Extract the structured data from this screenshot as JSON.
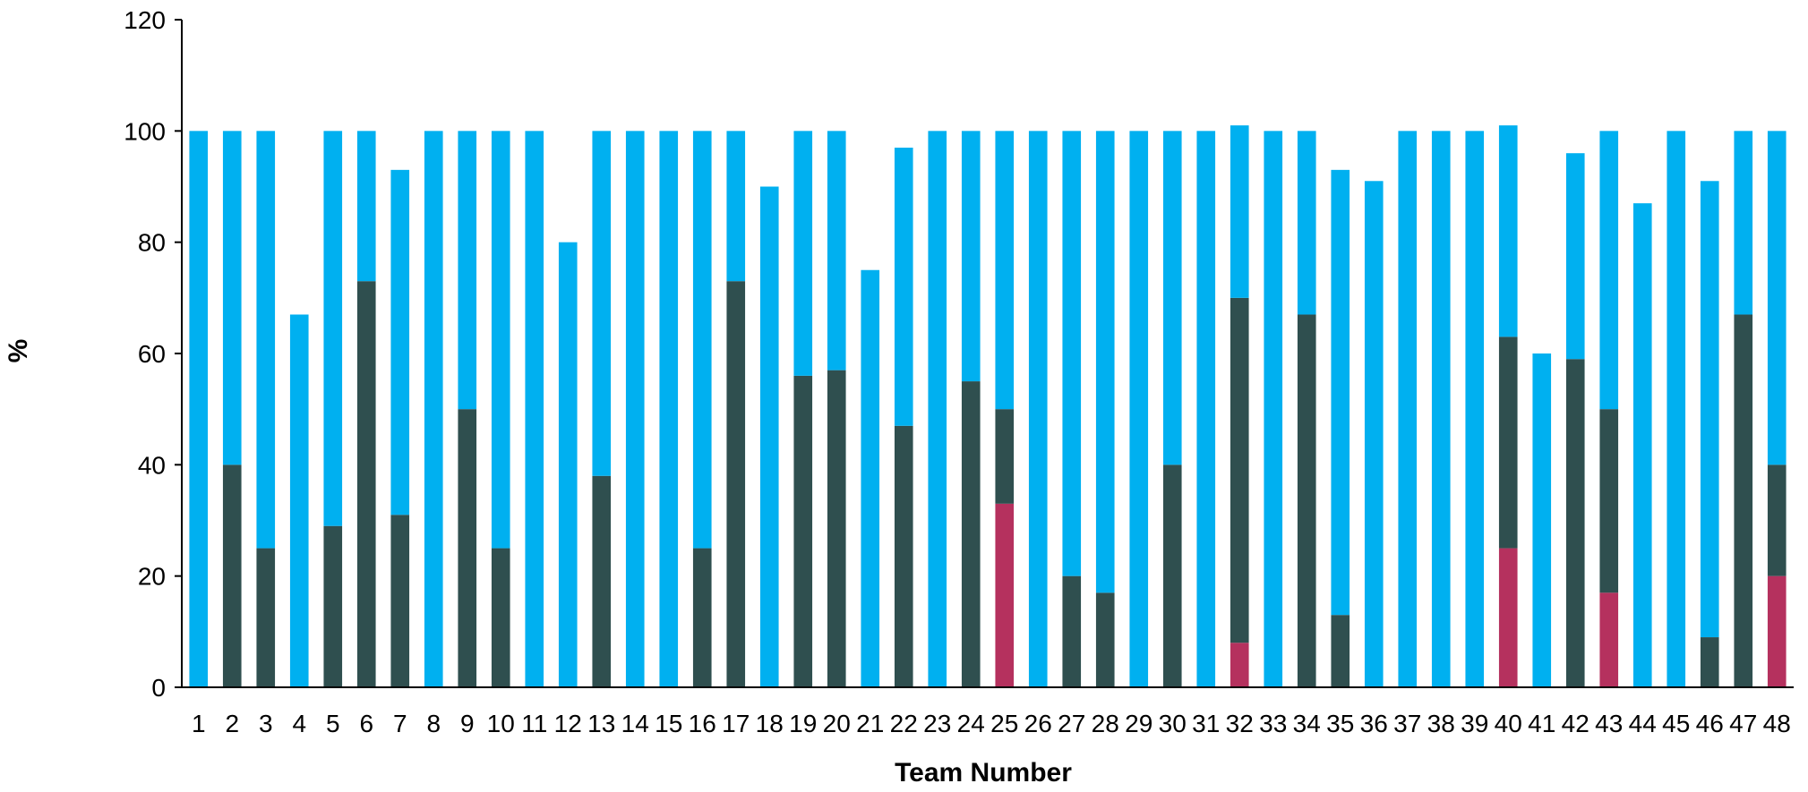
{
  "chart_data": {
    "type": "bar",
    "stacked": true,
    "title": "",
    "xlabel": "Team Number",
    "ylabel": "%",
    "ylim": [
      0,
      120
    ],
    "yticks": [
      0,
      20,
      40,
      60,
      80,
      100,
      120
    ],
    "grid": false,
    "legend": "none",
    "categories": [
      "1",
      "2",
      "3",
      "4",
      "5",
      "6",
      "7",
      "8",
      "9",
      "10",
      "11",
      "12",
      "13",
      "14",
      "15",
      "16",
      "17",
      "18",
      "19",
      "20",
      "21",
      "22",
      "23",
      "24",
      "25",
      "26",
      "27",
      "28",
      "29",
      "30",
      "31",
      "32",
      "33",
      "34",
      "35",
      "36",
      "37",
      "38",
      "39",
      "40",
      "41",
      "42",
      "43",
      "44",
      "45",
      "46",
      "47",
      "48"
    ],
    "series": [
      {
        "color": "#b5315e",
        "values": [
          0,
          0,
          0,
          0,
          0,
          0,
          0,
          0,
          0,
          0,
          0,
          0,
          0,
          0,
          0,
          0,
          0,
          0,
          0,
          0,
          0,
          0,
          0,
          0,
          33,
          0,
          0,
          0,
          0,
          0,
          0,
          8,
          0,
          0,
          0,
          0,
          0,
          0,
          0,
          25,
          0,
          0,
          17,
          0,
          0,
          0,
          0,
          20
        ]
      },
      {
        "color": "#2f4f4f",
        "values": [
          0,
          40,
          25,
          0,
          29,
          73,
          31,
          0,
          50,
          25,
          0,
          0,
          38,
          0,
          0,
          25,
          73,
          0,
          56,
          57,
          0,
          47,
          0,
          55,
          17,
          0,
          20,
          17,
          0,
          40,
          0,
          62,
          0,
          67,
          13,
          0,
          0,
          0,
          0,
          38,
          0,
          59,
          33,
          0,
          0,
          9,
          67,
          20
        ]
      },
      {
        "color": "#00b0f0",
        "values": [
          100,
          60,
          75,
          67,
          71,
          27,
          62,
          100,
          50,
          75,
          100,
          80,
          62,
          100,
          100,
          75,
          27,
          90,
          44,
          43,
          75,
          50,
          100,
          45,
          50,
          100,
          80,
          83,
          100,
          60,
          100,
          31,
          100,
          33,
          80,
          91,
          100,
          100,
          100,
          38,
          60,
          37,
          50,
          87,
          100,
          82,
          33,
          60
        ]
      }
    ]
  }
}
